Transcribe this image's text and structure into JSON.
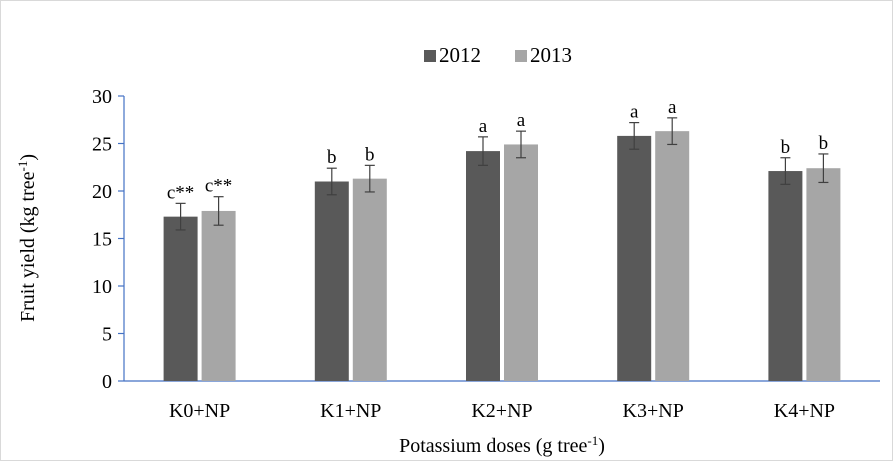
{
  "chart_data": {
    "type": "bar",
    "title": "",
    "xlabel": "Potassium doses (g tree",
    "xlabel_sup": "-1",
    "xlabel_tail": ")",
    "ylabel": "Fruit yield (kg tree",
    "ylabel_sup": "-1",
    "ylabel_tail": ")",
    "ylim": [
      0,
      30
    ],
    "yticks": [
      0,
      5,
      10,
      15,
      20,
      25,
      30
    ],
    "categories": [
      "K0+NP",
      "K1+NP",
      "K2+NP",
      "K3+NP",
      "K4+NP"
    ],
    "legend_position": "top-center",
    "grid": false,
    "series": [
      {
        "name": "2012",
        "color": "#595959",
        "values": [
          17.3,
          21.0,
          24.2,
          25.8,
          22.1
        ],
        "errors": [
          1.4,
          1.4,
          1.5,
          1.4,
          1.4
        ],
        "labels": [
          "c**",
          "b",
          "a",
          "a",
          "b"
        ]
      },
      {
        "name": "2013",
        "color": "#a6a6a6",
        "values": [
          17.9,
          21.3,
          24.9,
          26.3,
          22.4
        ],
        "errors": [
          1.5,
          1.4,
          1.4,
          1.4,
          1.5
        ],
        "labels": [
          "c**",
          "b",
          "a",
          "a",
          "b"
        ]
      }
    ]
  }
}
